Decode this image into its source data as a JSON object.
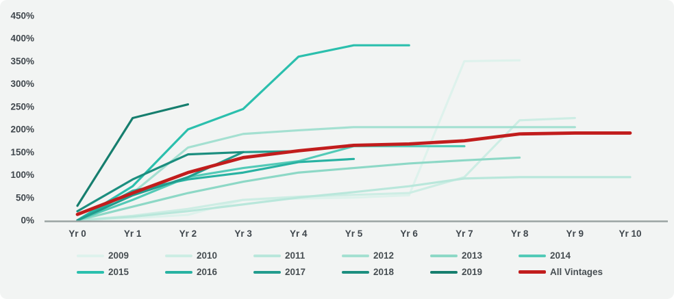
{
  "colors": {
    "background": "#f2f4f3",
    "axis_line": "#9aa3a2",
    "tick_text": "#3f464c",
    "legend_text": "#474e52",
    "accent_red": "#c11d1d"
  },
  "chart_data": {
    "type": "line",
    "title": "",
    "xlabel": "",
    "ylabel": "",
    "x_categories": [
      "Yr 0",
      "Yr 1",
      "Yr 2",
      "Yr 3",
      "Yr 4",
      "Yr 5",
      "Yr 6",
      "Yr 7",
      "Yr 8",
      "Yr 9",
      "Yr 10"
    ],
    "y_tick_labels": [
      "0%",
      "50%",
      "100%",
      "150%",
      "200%",
      "250%",
      "300%",
      "350%",
      "400%",
      "450%"
    ],
    "ylim": [
      0,
      450
    ],
    "y_tick_step": 50,
    "grid": false,
    "legend_position": "bottom",
    "legend_rows": 2,
    "series": [
      {
        "name": "2009",
        "color": "#def2ec",
        "values": [
          0,
          5,
          12,
          45,
          48,
          50,
          55,
          350,
          352
        ]
      },
      {
        "name": "2010",
        "color": "#cdede4",
        "values": [
          0,
          10,
          25,
          45,
          52,
          56,
          60,
          95,
          220,
          225
        ]
      },
      {
        "name": "2011",
        "color": "#b9e7db",
        "values": [
          0,
          8,
          20,
          35,
          50,
          62,
          75,
          92,
          95,
          95,
          95
        ]
      },
      {
        "name": "2012",
        "color": "#a4e0d1",
        "values": [
          0,
          60,
          160,
          190,
          198,
          205,
          205,
          205,
          205,
          205
        ]
      },
      {
        "name": "2013",
        "color": "#8dd8c6",
        "values": [
          0,
          30,
          60,
          85,
          105,
          115,
          125,
          132,
          138
        ]
      },
      {
        "name": "2014",
        "color": "#53cab7",
        "values": [
          0,
          45,
          95,
          115,
          130,
          163,
          163,
          163
        ]
      },
      {
        "name": "2015",
        "color": "#2bbfad",
        "values": [
          0,
          75,
          200,
          245,
          360,
          385,
          385
        ]
      },
      {
        "name": "2016",
        "color": "#28b2a2",
        "values": [
          0,
          65,
          90,
          105,
          128,
          135
        ]
      },
      {
        "name": "2017",
        "color": "#229c8d",
        "values": [
          0,
          55,
          95,
          150,
          152
        ]
      },
      {
        "name": "2018",
        "color": "#1c8e7f",
        "values": [
          20,
          90,
          145,
          150
        ]
      },
      {
        "name": "2019",
        "color": "#167e6e",
        "values": [
          32,
          225,
          255
        ]
      },
      {
        "name": "All Vintages",
        "color": "#c11d1d",
        "values": [
          13,
          60,
          105,
          138,
          153,
          165,
          168,
          175,
          190,
          192,
          192
        ],
        "emphasis": true
      }
    ]
  }
}
